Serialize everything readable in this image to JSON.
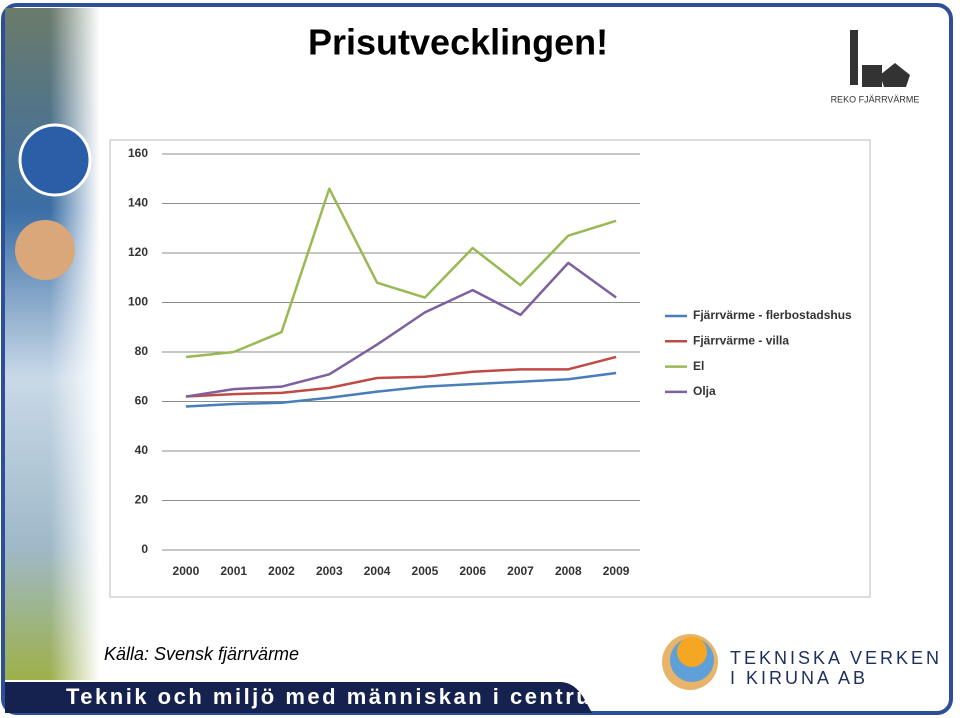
{
  "slide": {
    "title": "Prisutvecklingen!",
    "logo_top": "REKO FJÄRRVÄRME",
    "source": "Källa: Svensk fjärrvärme",
    "footer": "Teknik och miljö med människan i centrum",
    "logo_bottom": [
      "TEKNISKA VERKEN",
      "I KIRUNA AB"
    ]
  },
  "chart_data": {
    "type": "line",
    "categories": [
      "2000",
      "2001",
      "2002",
      "2003",
      "2004",
      "2005",
      "2006",
      "2007",
      "2008",
      "2009"
    ],
    "series": [
      {
        "name": "Fjärrvärme - flerbostadshus",
        "color": "#4a7ebb",
        "values": [
          58,
          59,
          59.5,
          61.5,
          64,
          66,
          67,
          68,
          69,
          71.5
        ]
      },
      {
        "name": "Fjärrvärme - villa",
        "color": "#be4b48",
        "values": [
          62,
          63,
          63.5,
          65.5,
          69.5,
          70,
          72,
          73,
          73,
          78
        ]
      },
      {
        "name": "El",
        "color": "#98b954",
        "values": [
          78,
          80,
          88,
          146,
          108,
          102,
          122,
          107,
          127,
          133
        ]
      },
      {
        "name": "Olja",
        "color": "#7d60a0",
        "values": [
          62,
          65,
          66,
          71,
          83,
          96,
          105,
          95,
          116,
          102
        ]
      }
    ],
    "ylim": [
      0,
      160
    ],
    "yticks": [
      0,
      20,
      40,
      60,
      80,
      100,
      120,
      140,
      160
    ],
    "grid": true,
    "legend": "right"
  }
}
